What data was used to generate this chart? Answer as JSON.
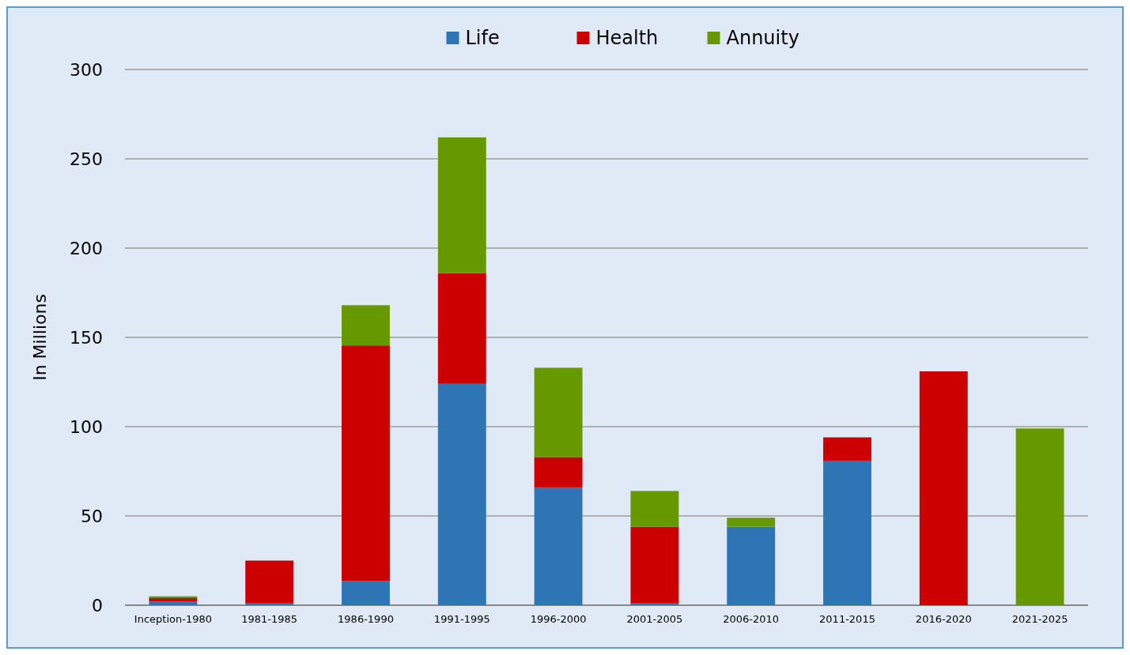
{
  "chart_data": {
    "type": "bar",
    "stacked": true,
    "ylabel": "In Millions",
    "categories": [
      "Inception-1980",
      "1981-1985",
      "1986-1990",
      "1991-1995",
      "1996-2000",
      "2001-2005",
      "2006-2010",
      "2011-2015",
      "2016-2020",
      "2021-2025"
    ],
    "series": [
      {
        "name": "Life",
        "color": "#2e75b6",
        "values": [
          2,
          1,
          13.5,
          124,
          66,
          1,
          44,
          81,
          0,
          0
        ]
      },
      {
        "name": "Health",
        "color": "#cc0000",
        "values": [
          2,
          24,
          132,
          62,
          17,
          43,
          0,
          13,
          131,
          0
        ]
      },
      {
        "name": "Annuity",
        "color": "#669900",
        "values": [
          1,
          0,
          22.5,
          76,
          50,
          20,
          5,
          0,
          0,
          99
        ]
      }
    ],
    "ylim": [
      0,
      300
    ],
    "yticks": [
      0,
      50,
      100,
      150,
      200,
      250,
      300
    ],
    "grid": "y",
    "legend": "top"
  }
}
